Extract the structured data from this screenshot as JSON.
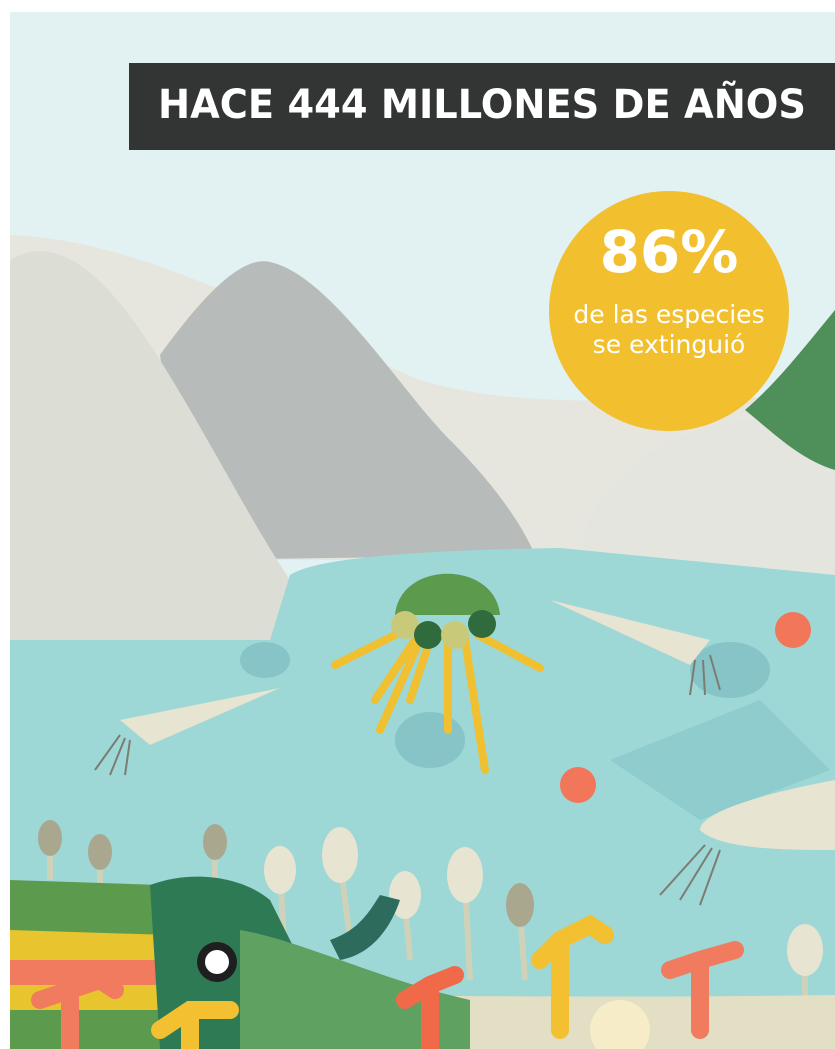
{
  "header": {
    "title": "HACE 444 MILLONES DE AÑOS"
  },
  "stat": {
    "value": "86%",
    "caption": [
      "de las especies",
      "se extinguió"
    ]
  }
}
